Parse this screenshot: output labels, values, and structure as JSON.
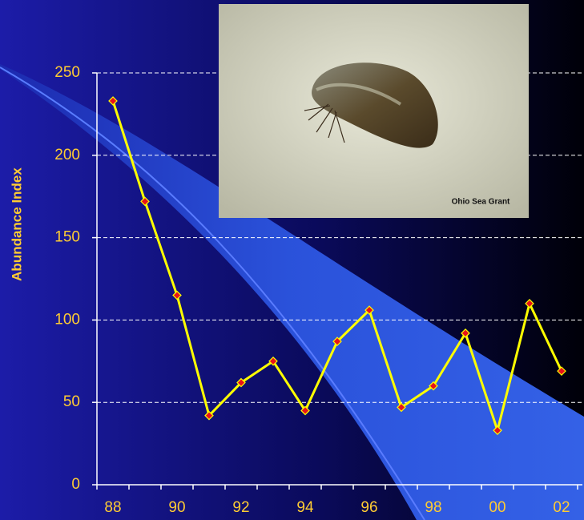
{
  "chart_data": {
    "type": "line",
    "y_label": "Abundance Index",
    "categories": [
      "88",
      null,
      "90",
      null,
      "92",
      null,
      "94",
      null,
      "96",
      null,
      "98",
      null,
      "00",
      null,
      "02"
    ],
    "values": [
      233,
      172,
      115,
      42,
      62,
      75,
      45,
      87,
      106,
      47,
      60,
      92,
      33,
      110,
      69
    ],
    "color": "#ffff00",
    "marker_color": "#e8121a",
    "ylim": [
      0,
      250
    ],
    "yticks": [
      0,
      50,
      100,
      150,
      200,
      250
    ],
    "grid": true,
    "photo_credit": "Ohio Sea Grant"
  }
}
